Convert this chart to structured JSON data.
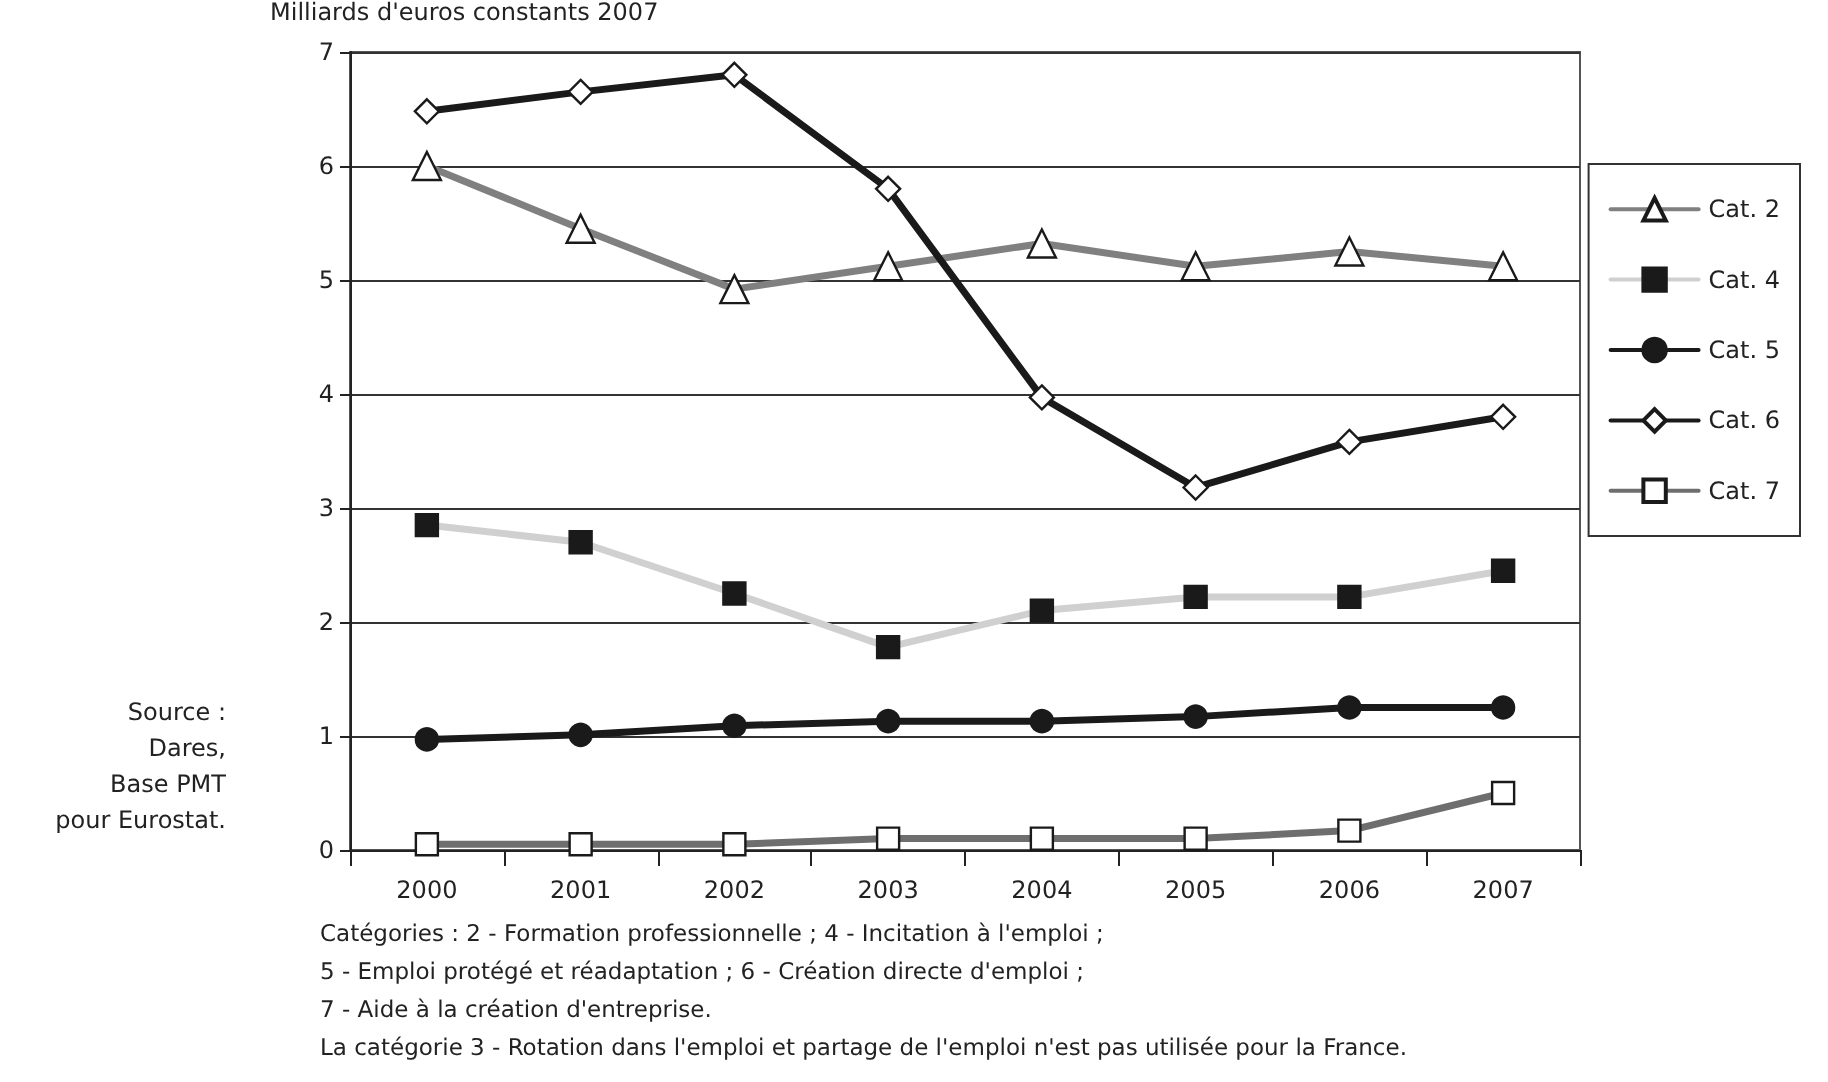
{
  "chart_data": {
    "type": "line",
    "ylabel": "Milliards d'euros constants 2007",
    "categories": [
      "2000",
      "2001",
      "2002",
      "2003",
      "2004",
      "2005",
      "2006",
      "2007"
    ],
    "series": [
      {
        "name": "Cat. 2",
        "color": "#808080",
        "marker": "triangle",
        "values": [
          6.0,
          5.45,
          4.92,
          5.12,
          5.32,
          5.12,
          5.25,
          5.12
        ]
      },
      {
        "name": "Cat. 4",
        "color": "#d0d0d0",
        "marker": "square",
        "values": [
          2.85,
          2.7,
          2.25,
          1.78,
          2.1,
          2.22,
          2.22,
          2.45
        ]
      },
      {
        "name": "Cat. 5",
        "color": "#1a1a1a",
        "marker": "circle",
        "values": [
          0.97,
          1.01,
          1.09,
          1.13,
          1.13,
          1.17,
          1.25,
          1.25
        ]
      },
      {
        "name": "Cat. 6",
        "color": "#1a1a1a",
        "marker": "diamond",
        "values": [
          6.48,
          6.65,
          6.8,
          5.8,
          3.97,
          3.18,
          3.58,
          3.8
        ]
      },
      {
        "name": "Cat. 7",
        "color": "#6e6e6e",
        "marker": "square",
        "values": [
          0.05,
          0.05,
          0.05,
          0.1,
          0.1,
          0.1,
          0.17,
          0.5
        ]
      }
    ],
    "ylim": [
      0,
      7
    ],
    "yticks": [
      0,
      1,
      2,
      3,
      4,
      5,
      6,
      7
    ],
    "grid": "y",
    "legend": "right",
    "line_style": "solid",
    "annotations": [
      "Source :\nDares,\nBase PMT\npour Eurostat.",
      "Catégories : 2 - Formation professionnelle ; 4 - Incitation à l'emploi ;\n5 - Emploi protégé et réadaptation ; 6 - Création directe d'emploi ;\n7 - Aide à la création d'entreprise.\nLa catégorie 3 - Rotation dans l'emploi et partage de l'emploi n'est pas utilisée pour la France."
    ]
  }
}
